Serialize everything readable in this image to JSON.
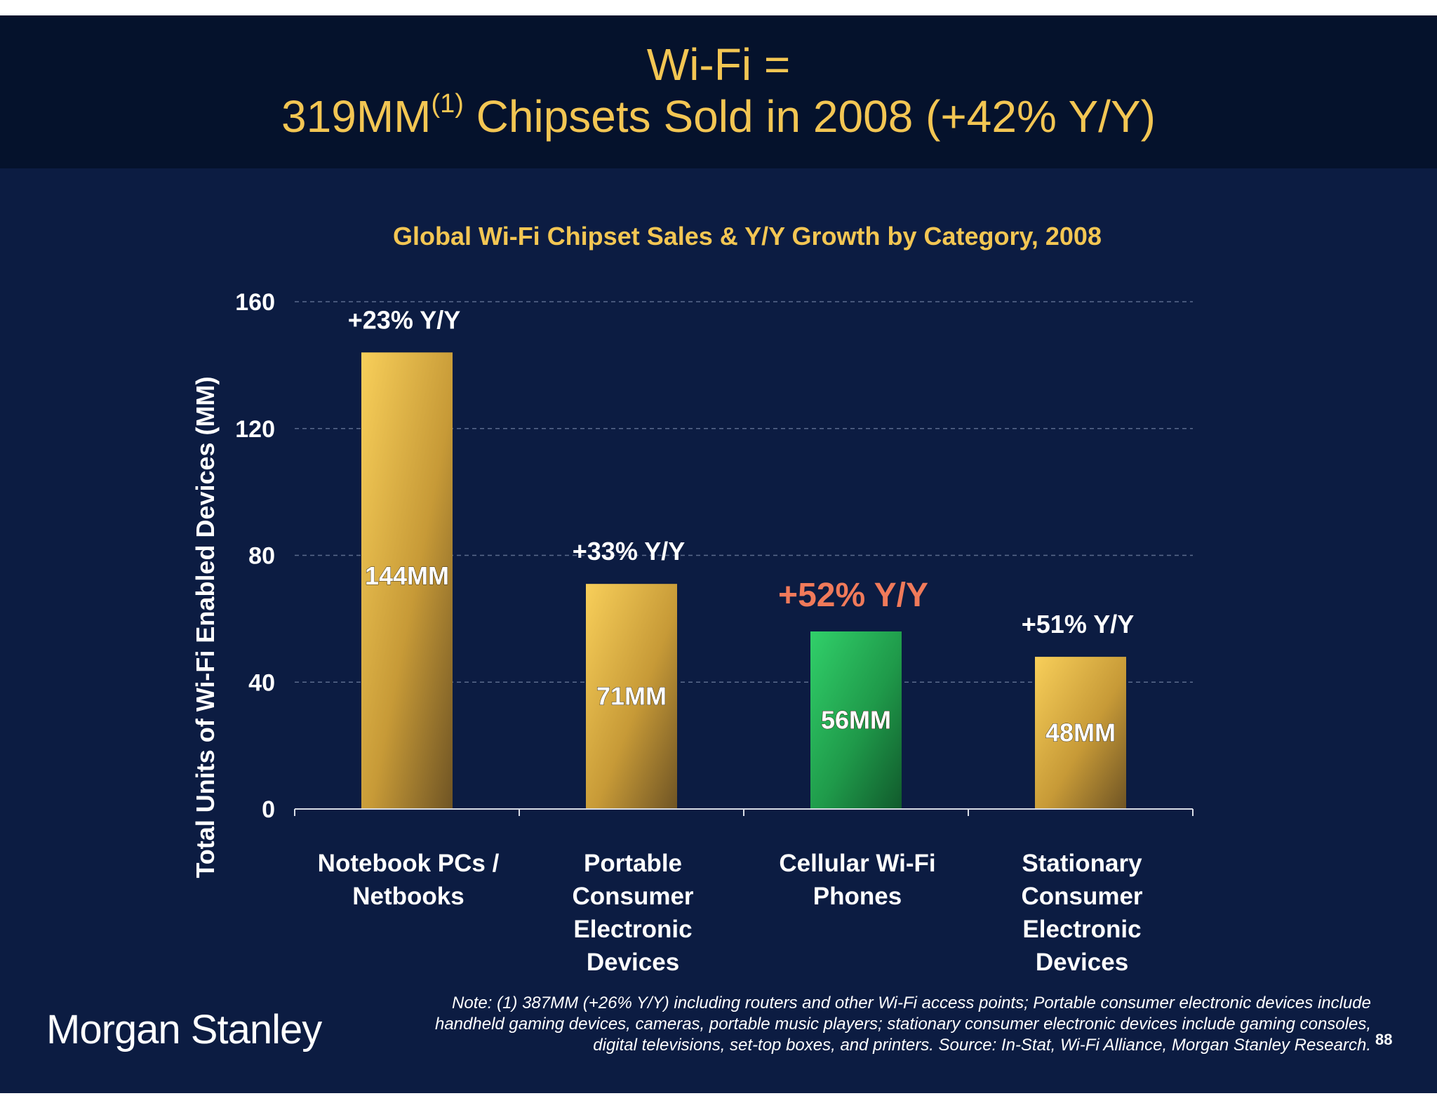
{
  "header": {
    "title_line1": "Wi-Fi =",
    "title_line2_pre": "319MM",
    "title_line2_sup": "(1)",
    "title_line2_post": " Chipsets Sold in 2008 (+42% Y/Y)"
  },
  "colors": {
    "background": "#0c1c42",
    "title_band": "#05122c",
    "accent_gold": "#f3c653",
    "bar_gold": "#e9be4c",
    "bar_green": "#2cc25e",
    "highlight_orange": "#f07a5a"
  },
  "chart_data": {
    "type": "bar",
    "title": "Global Wi-Fi Chipset Sales & Y/Y Growth by Category, 2008",
    "xlabel": "",
    "ylabel": "Total Units of Wi-Fi Enabled Devices (MM)",
    "ylim": [
      0,
      160
    ],
    "yticks": [
      "0",
      "40",
      "80",
      "120",
      "160"
    ],
    "grid": true,
    "categories": [
      [
        "Notebook PCs /",
        "Netbooks"
      ],
      [
        "Portable",
        "Consumer",
        "Electronic",
        "Devices"
      ],
      [
        "Cellular Wi-Fi",
        "Phones"
      ],
      [
        "Stationary",
        "Consumer",
        "Electronic",
        "Devices"
      ]
    ],
    "values": [
      144,
      71,
      56,
      48
    ],
    "value_labels": [
      "144MM",
      "71MM",
      "56MM",
      "48MM"
    ],
    "growth_labels": [
      "+23% Y/Y",
      "+33% Y/Y",
      "+52% Y/Y",
      "+51% Y/Y"
    ],
    "highlight_index": 2
  },
  "footer": {
    "note_lines": [
      "Note: (1) 387MM (+26% Y/Y) including routers and other Wi-Fi access points; Portable consumer electronic devices include",
      "handheld gaming devices, cameras, portable music players; stationary consumer electronic devices include gaming consoles,",
      "digital televisions, set-top boxes, and printers. Source: In-Stat, Wi-Fi Alliance, Morgan Stanley Research."
    ],
    "page_number": "88",
    "logo_text": "Morgan Stanley"
  }
}
